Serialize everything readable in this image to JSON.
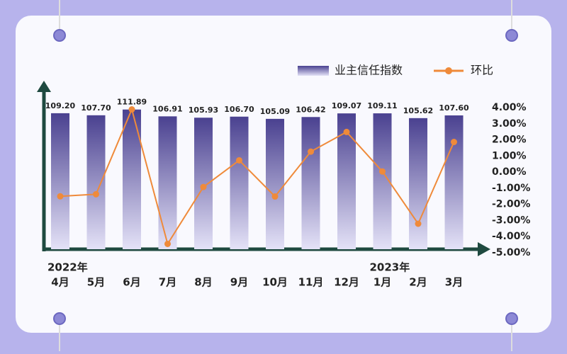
{
  "chart_data": {
    "type": "bar-line",
    "categories": [
      "4月",
      "5月",
      "6月",
      "7月",
      "8月",
      "9月",
      "10月",
      "11月",
      "12月",
      "1月",
      "2月",
      "3月"
    ],
    "x_group_labels": [
      "2022年",
      null,
      null,
      null,
      null,
      null,
      null,
      null,
      null,
      "2023年",
      null,
      null
    ],
    "series": [
      {
        "name": "业主信任指数",
        "type": "bar",
        "color": "#4a4190",
        "values": [
          109.2,
          107.7,
          111.89,
          106.91,
          105.93,
          106.7,
          105.09,
          106.42,
          109.07,
          109.11,
          105.62,
          107.6
        ],
        "value_labels": [
          "109.20",
          "107.70",
          "111.89",
          "106.91",
          "105.93",
          "106.70",
          "105.09",
          "106.42",
          "109.07",
          "109.11",
          "105.62",
          "107.60"
        ]
      },
      {
        "name": "环比",
        "type": "line",
        "axis": "y2",
        "color": "#ef8a3a",
        "values": [
          -1.5,
          -1.37,
          3.89,
          -4.45,
          -0.92,
          0.73,
          -1.51,
          1.27,
          2.49,
          0.04,
          -3.2,
          1.87
        ]
      }
    ],
    "ylim": [
      10,
      120
    ],
    "y2lim": [
      -5,
      4
    ],
    "y2ticks": [
      {
        "value": 4,
        "label": "4.00%"
      },
      {
        "value": 3,
        "label": "3.00%"
      },
      {
        "value": 2,
        "label": "2.00%"
      },
      {
        "value": 1,
        "label": "1.00%"
      },
      {
        "value": 0,
        "label": "0.00%"
      },
      {
        "value": -1,
        "label": "-1.00%"
      },
      {
        "value": -2,
        "label": "-2.00%"
      },
      {
        "value": -3,
        "label": "-3.00%"
      },
      {
        "value": -4,
        "label": "-4.00%"
      },
      {
        "value": -5,
        "label": "-5.00%"
      }
    ],
    "legend": "top-right"
  }
}
